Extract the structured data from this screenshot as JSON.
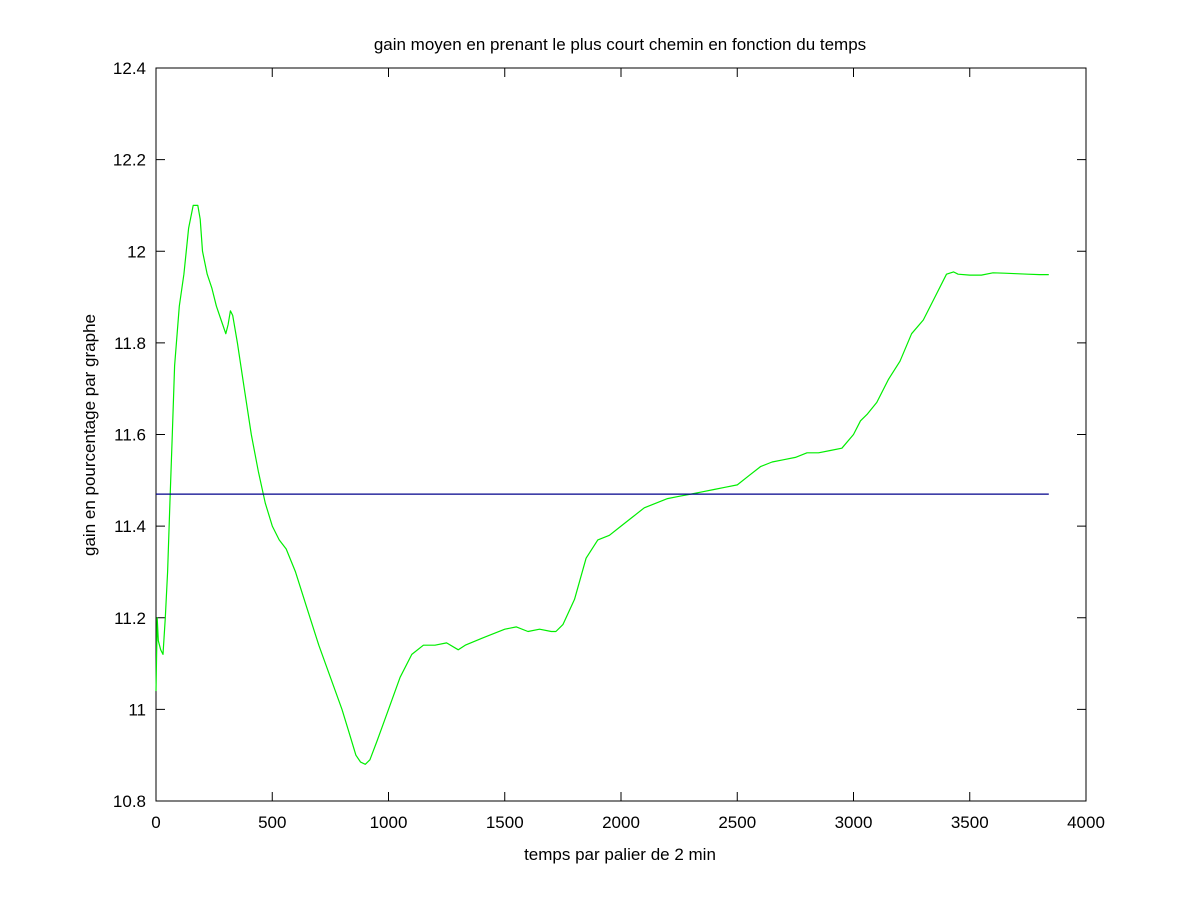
{
  "chart_data": {
    "type": "line",
    "title": "gain moyen en prenant le plus court chemin en fonction du temps",
    "xlabel": "temps par palier de 2 min",
    "ylabel": "gain en pourcentage par graphe",
    "xlim": [
      0,
      4000
    ],
    "ylim": [
      10.8,
      12.4
    ],
    "xticks": [
      0,
      500,
      1000,
      1500,
      2000,
      2500,
      3000,
      3500,
      4000
    ],
    "xtick_labels": [
      "0",
      "500",
      "1000",
      "1500",
      "2000",
      "2500",
      "3000",
      "3500",
      "4000"
    ],
    "yticks": [
      10.8,
      11,
      11.2,
      11.4,
      11.6,
      11.8,
      12,
      12.2,
      12.4
    ],
    "ytick_labels": [
      "10.8",
      "11",
      "11.2",
      "11.4",
      "11.6",
      "11.8",
      "12",
      "12.2",
      "12.4"
    ],
    "grid": false,
    "legend": "none",
    "series": [
      {
        "color": "#00ee00",
        "x": [
          0,
          5,
          10,
          20,
          30,
          40,
          50,
          60,
          70,
          80,
          100,
          120,
          140,
          160,
          180,
          190,
          200,
          220,
          240,
          260,
          280,
          300,
          310,
          320,
          330,
          350,
          380,
          410,
          440,
          470,
          500,
          530,
          560,
          600,
          650,
          700,
          750,
          800,
          830,
          860,
          880,
          900,
          920,
          950,
          1000,
          1050,
          1100,
          1150,
          1200,
          1250,
          1300,
          1330,
          1400,
          1450,
          1500,
          1550,
          1600,
          1650,
          1700,
          1720,
          1750,
          1800,
          1850,
          1900,
          1950,
          2000,
          2050,
          2100,
          2150,
          2200,
          2250,
          2300,
          2350,
          2400,
          2450,
          2500,
          2550,
          2600,
          2650,
          2700,
          2750,
          2800,
          2850,
          2900,
          2950,
          3000,
          3030,
          3060,
          3100,
          3150,
          3200,
          3250,
          3300,
          3350,
          3400,
          3430,
          3450,
          3500,
          3550,
          3600,
          3650,
          3700,
          3750,
          3800,
          3840
        ],
        "y": [
          11.04,
          11.2,
          11.15,
          11.13,
          11.12,
          11.2,
          11.3,
          11.45,
          11.6,
          11.75,
          11.88,
          11.95,
          12.05,
          12.1,
          12.1,
          12.07,
          12.0,
          11.95,
          11.92,
          11.88,
          11.85,
          11.82,
          11.84,
          11.87,
          11.86,
          11.8,
          11.7,
          11.6,
          11.52,
          11.45,
          11.4,
          11.37,
          11.35,
          11.3,
          11.22,
          11.14,
          11.07,
          11.0,
          10.95,
          10.9,
          10.885,
          10.88,
          10.89,
          10.93,
          11.0,
          11.07,
          11.12,
          11.14,
          11.14,
          11.145,
          11.13,
          11.14,
          11.155,
          11.165,
          11.175,
          11.18,
          11.17,
          11.175,
          11.17,
          11.17,
          11.185,
          11.24,
          11.33,
          11.37,
          11.38,
          11.4,
          11.42,
          11.44,
          11.45,
          11.46,
          11.465,
          11.47,
          11.475,
          11.48,
          11.485,
          11.49,
          11.51,
          11.53,
          11.54,
          11.545,
          11.55,
          11.56,
          11.56,
          11.565,
          11.57,
          11.6,
          11.63,
          11.645,
          11.67,
          11.72,
          11.76,
          11.82,
          11.85,
          11.9,
          11.95,
          11.955,
          11.95,
          11.948,
          11.948,
          11.953,
          11.952,
          11.951,
          11.95,
          11.949,
          11.949
        ]
      },
      {
        "color": "#00008b",
        "x": [
          0,
          3840
        ],
        "y": [
          11.47,
          11.47
        ]
      }
    ]
  }
}
